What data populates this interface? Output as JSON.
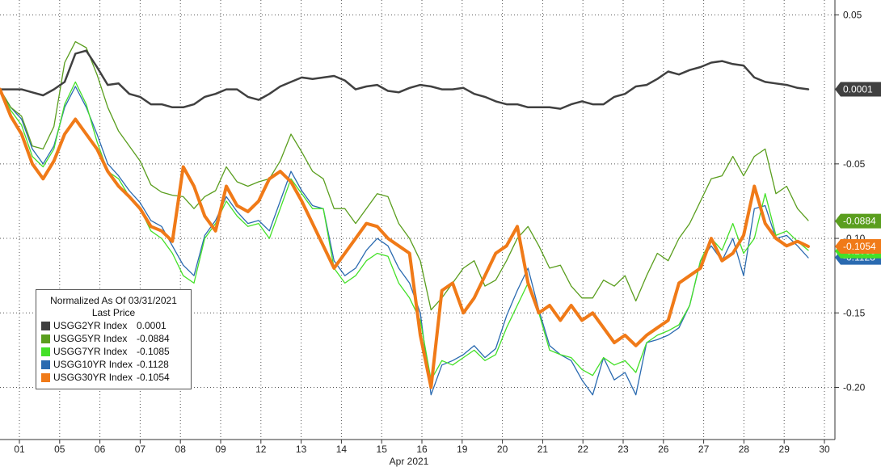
{
  "chart_data": {
    "type": "line",
    "xlabel": "Apr 2021",
    "x_ticks": [
      "01",
      "05",
      "06",
      "07",
      "08",
      "09",
      "12",
      "13",
      "14",
      "15",
      "16",
      "19",
      "20",
      "21",
      "22",
      "23",
      "26",
      "27",
      "28",
      "29",
      "30"
    ],
    "y_ticks": [
      "0.05",
      "-0.05",
      "-0.10",
      "-0.15",
      "-0.20"
    ],
    "ylim": [
      -0.235,
      0.06
    ],
    "grid": true,
    "legend": {
      "title": "Normalized As Of 03/31/2021",
      "subtitle": "Last Price",
      "placement": "bottom-left"
    },
    "series": [
      {
        "name": "USGG2YR Index",
        "last": "0.0001",
        "color": "#404040",
        "values": [
          0,
          0,
          0,
          -0.002,
          -0.004,
          0,
          0.005,
          0.024,
          0.026,
          0.015,
          0.003,
          0.004,
          -0.003,
          -0.005,
          -0.01,
          -0.01,
          -0.012,
          -0.012,
          -0.01,
          -0.005,
          -0.003,
          0,
          0,
          -0.005,
          -0.007,
          -0.003,
          0.002,
          0.005,
          0.008,
          0.007,
          0.008,
          0.009,
          0.006,
          0,
          0.002,
          0.003,
          -0.001,
          -0.002,
          0.001,
          0.003,
          0.002,
          0,
          0,
          0.001,
          -0.003,
          -0.005,
          -0.008,
          -0.01,
          -0.01,
          -0.012,
          -0.012,
          -0.012,
          -0.013,
          -0.01,
          -0.008,
          -0.01,
          -0.01,
          -0.005,
          -0.003,
          0.002,
          0.003,
          0.007,
          0.012,
          0.01,
          0.013,
          0.015,
          0.018,
          0.019,
          0.017,
          0.016,
          0.008,
          0.005,
          0.004,
          0.003,
          0.001,
          0.0001
        ]
      },
      {
        "name": "USGG5YR Index",
        "last": "-0.0884",
        "color": "#5a9e1e",
        "values": [
          0,
          -0.012,
          -0.018,
          -0.038,
          -0.04,
          -0.025,
          0.018,
          0.032,
          0.028,
          0.01,
          -0.012,
          -0.028,
          -0.038,
          -0.048,
          -0.064,
          -0.069,
          -0.071,
          -0.072,
          -0.08,
          -0.072,
          -0.068,
          -0.052,
          -0.062,
          -0.065,
          -0.062,
          -0.06,
          -0.048,
          -0.03,
          -0.042,
          -0.055,
          -0.06,
          -0.08,
          -0.08,
          -0.09,
          -0.08,
          -0.07,
          -0.072,
          -0.09,
          -0.1,
          -0.115,
          -0.148,
          -0.14,
          -0.13,
          -0.12,
          -0.115,
          -0.132,
          -0.128,
          -0.115,
          -0.1,
          -0.092,
          -0.105,
          -0.12,
          -0.118,
          -0.132,
          -0.14,
          -0.14,
          -0.128,
          -0.132,
          -0.125,
          -0.142,
          -0.125,
          -0.11,
          -0.115,
          -0.1,
          -0.09,
          -0.075,
          -0.06,
          -0.058,
          -0.045,
          -0.058,
          -0.045,
          -0.04,
          -0.07,
          -0.065,
          -0.08,
          -0.088
        ]
      },
      {
        "name": "USGG7YR Index",
        "last": "-0.1085",
        "color": "#44e028",
        "values": [
          0,
          -0.014,
          -0.024,
          -0.045,
          -0.052,
          -0.04,
          -0.01,
          0.005,
          -0.01,
          -0.035,
          -0.055,
          -0.06,
          -0.072,
          -0.08,
          -0.095,
          -0.1,
          -0.11,
          -0.125,
          -0.13,
          -0.1,
          -0.09,
          -0.075,
          -0.085,
          -0.092,
          -0.09,
          -0.1,
          -0.08,
          -0.06,
          -0.07,
          -0.08,
          -0.08,
          -0.12,
          -0.13,
          -0.125,
          -0.115,
          -0.11,
          -0.112,
          -0.13,
          -0.14,
          -0.155,
          -0.195,
          -0.182,
          -0.185,
          -0.18,
          -0.175,
          -0.182,
          -0.178,
          -0.16,
          -0.145,
          -0.13,
          -0.15,
          -0.175,
          -0.178,
          -0.18,
          -0.188,
          -0.192,
          -0.18,
          -0.185,
          -0.182,
          -0.19,
          -0.17,
          -0.165,
          -0.162,
          -0.158,
          -0.145,
          -0.115,
          -0.1,
          -0.108,
          -0.09,
          -0.11,
          -0.1,
          -0.07,
          -0.098,
          -0.095,
          -0.102,
          -0.108
        ]
      },
      {
        "name": "USGG10YR Index",
        "last": "-0.1128",
        "color": "#2a6ab0",
        "values": [
          0,
          -0.012,
          -0.02,
          -0.04,
          -0.05,
          -0.038,
          -0.012,
          0.002,
          -0.012,
          -0.03,
          -0.05,
          -0.058,
          -0.068,
          -0.076,
          -0.088,
          -0.092,
          -0.105,
          -0.118,
          -0.125,
          -0.098,
          -0.088,
          -0.072,
          -0.082,
          -0.09,
          -0.088,
          -0.095,
          -0.075,
          -0.055,
          -0.068,
          -0.078,
          -0.08,
          -0.115,
          -0.125,
          -0.12,
          -0.108,
          -0.1,
          -0.105,
          -0.12,
          -0.13,
          -0.15,
          -0.205,
          -0.185,
          -0.182,
          -0.178,
          -0.172,
          -0.18,
          -0.174,
          -0.152,
          -0.135,
          -0.12,
          -0.148,
          -0.172,
          -0.178,
          -0.182,
          -0.195,
          -0.205,
          -0.18,
          -0.195,
          -0.19,
          -0.205,
          -0.17,
          -0.168,
          -0.165,
          -0.16,
          -0.145,
          -0.115,
          -0.105,
          -0.115,
          -0.1,
          -0.125,
          -0.08,
          -0.078,
          -0.1,
          -0.098,
          -0.105,
          -0.113
        ]
      },
      {
        "name": "USGG30YR Index",
        "last": "-0.1054",
        "color": "#f07a18",
        "values": [
          0,
          -0.018,
          -0.03,
          -0.05,
          -0.06,
          -0.048,
          -0.03,
          -0.02,
          -0.03,
          -0.04,
          -0.055,
          -0.065,
          -0.072,
          -0.08,
          -0.092,
          -0.095,
          -0.102,
          -0.052,
          -0.065,
          -0.085,
          -0.095,
          -0.065,
          -0.078,
          -0.082,
          -0.075,
          -0.06,
          -0.055,
          -0.062,
          -0.075,
          -0.09,
          -0.105,
          -0.12,
          -0.11,
          -0.1,
          -0.09,
          -0.092,
          -0.1,
          -0.105,
          -0.11,
          -0.165,
          -0.2,
          -0.135,
          -0.13,
          -0.15,
          -0.14,
          -0.125,
          -0.11,
          -0.105,
          -0.092,
          -0.13,
          -0.15,
          -0.145,
          -0.155,
          -0.145,
          -0.155,
          -0.15,
          -0.16,
          -0.17,
          -0.165,
          -0.172,
          -0.165,
          -0.16,
          -0.155,
          -0.13,
          -0.125,
          -0.12,
          -0.1,
          -0.115,
          -0.11,
          -0.098,
          -0.065,
          -0.09,
          -0.1,
          -0.105,
          -0.102,
          -0.1054
        ]
      }
    ]
  }
}
